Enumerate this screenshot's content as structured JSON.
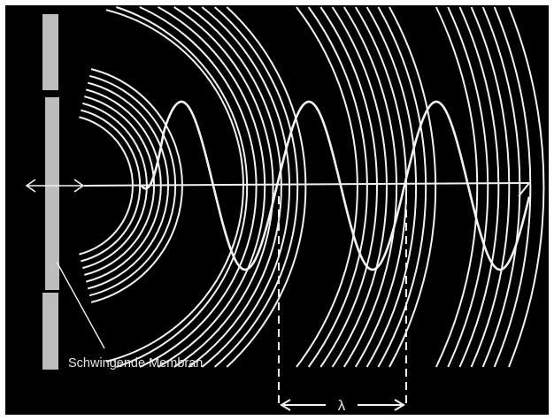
{
  "diagram": {
    "membrane_label": "Schwingende Membran",
    "wavelength_symbol": "λ",
    "colors": {
      "background": "#000000",
      "frame": "#ffffff",
      "lines": "#f2f2f2",
      "membrane": "#bdbdbd"
    }
  }
}
